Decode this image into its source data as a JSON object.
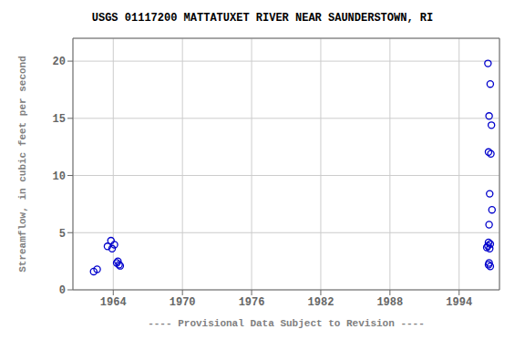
{
  "chart_data": {
    "type": "scatter",
    "title": "USGS 01117200 MATTATUXET RIVER NEAR SAUNDERSTOWN, RI",
    "x_label": "---- Provisional Data Subject to Revision ----",
    "y_label": "Streamflow, in cubic feet per second",
    "x": [
      1962.3,
      1962.6,
      1963.5,
      1963.8,
      1963.9,
      1964.1,
      1964.3,
      1964.4,
      1964.5,
      1964.6,
      1996.5,
      1996.7,
      1996.6,
      1996.8,
      1996.55,
      1996.75,
      1996.65,
      1996.85,
      1996.6,
      1996.5,
      1996.7,
      1996.55,
      1996.65,
      1996.4,
      1996.6,
      1996.55,
      1996.7
    ],
    "values": [
      1.6,
      1.8,
      3.8,
      4.3,
      3.6,
      3.95,
      2.35,
      2.5,
      2.2,
      2.1,
      19.8,
      18.0,
      15.2,
      14.4,
      12.05,
      11.9,
      8.4,
      7.0,
      5.7,
      3.85,
      4.0,
      4.15,
      3.6,
      3.7,
      2.35,
      2.2,
      2.05
    ],
    "xlim": [
      1960.5,
      1997.5
    ],
    "ylim": [
      0,
      22
    ],
    "xticks": [
      1964,
      1970,
      1976,
      1982,
      1988,
      1994
    ],
    "yticks": [
      0,
      5,
      10,
      15,
      20
    ],
    "color": "#0000CC",
    "marker": "circle",
    "grid": true
  }
}
